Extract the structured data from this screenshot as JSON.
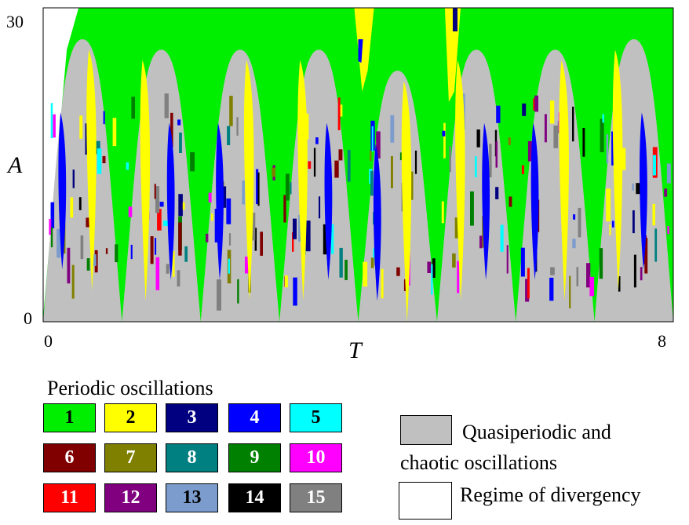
{
  "chart_data": {
    "type": "heatmap",
    "title": "",
    "xlabel": "T",
    "ylabel": "A",
    "xlim": [
      0,
      8
    ],
    "ylim": [
      0,
      30
    ],
    "x_ticks": [
      "0",
      "8"
    ],
    "y_ticks": [
      "0",
      "30"
    ],
    "regions_note_categories": [
      "1",
      "2",
      "3",
      "4",
      "5",
      "6",
      "7",
      "8",
      "9",
      "10",
      "11",
      "12",
      "13",
      "14",
      "15",
      "Quasiperiodic and chaotic oscillations",
      "Regime of divergency"
    ],
    "tongue_minima_T": [
      0,
      1,
      2,
      3,
      4,
      5,
      6,
      7,
      8
    ],
    "tongue_peaks": [
      {
        "T": 0.5,
        "A": 27,
        "region": "Quasiperiodic and chaotic oscillations"
      },
      {
        "T": 1.5,
        "A": 26,
        "region": "Quasiperiodic and chaotic oscillations"
      },
      {
        "T": 2.5,
        "A": 26,
        "region": "Quasiperiodic and chaotic oscillations"
      },
      {
        "T": 3.5,
        "A": 26,
        "region": "Quasiperiodic and chaotic oscillations"
      },
      {
        "T": 4.5,
        "A": 24,
        "region": "Quasiperiodic and chaotic oscillations"
      },
      {
        "T": 5.5,
        "A": 26,
        "region": "Quasiperiodic and chaotic oscillations"
      },
      {
        "T": 6.5,
        "A": 26,
        "region": "Quasiperiodic and chaotic oscillations"
      },
      {
        "T": 7.5,
        "A": 27,
        "region": "Quasiperiodic and chaotic oscillations"
      }
    ],
    "background_region": "1",
    "divergence_region": {
      "T": [
        0,
        0.45
      ],
      "A": [
        0,
        30
      ]
    }
  },
  "legend": {
    "title": "Periodic oscillations",
    "items": [
      {
        "label": "1",
        "color": "#00ee00",
        "text_color": "#000000"
      },
      {
        "label": "2",
        "color": "#ffff00",
        "text_color": "#000000"
      },
      {
        "label": "3",
        "color": "#000080",
        "text_color": "#ffffff"
      },
      {
        "label": "4",
        "color": "#0000ff",
        "text_color": "#ffffff"
      },
      {
        "label": "5",
        "color": "#00ffff",
        "text_color": "#000000"
      },
      {
        "label": "6",
        "color": "#800000",
        "text_color": "#ffffff"
      },
      {
        "label": "7",
        "color": "#808000",
        "text_color": "#ffffff"
      },
      {
        "label": "8",
        "color": "#008080",
        "text_color": "#ffffff"
      },
      {
        "label": "9",
        "color": "#008000",
        "text_color": "#ffffff"
      },
      {
        "label": "10",
        "color": "#ff00ff",
        "text_color": "#ffffff"
      },
      {
        "label": "11",
        "color": "#ff0000",
        "text_color": "#ffffff"
      },
      {
        "label": "12",
        "color": "#800080",
        "text_color": "#ffffff"
      },
      {
        "label": "13",
        "color": "#7b9ccc",
        "text_color": "#000000"
      },
      {
        "label": "14",
        "color": "#000000",
        "text_color": "#ffffff"
      },
      {
        "label": "15",
        "color": "#808080",
        "text_color": "#ffffff"
      }
    ],
    "quasi_line1": "Quasiperiodic and",
    "quasi_line2": "chaotic oscillations",
    "quasi_color": "#c0c0c0",
    "divergency": "Regime of divergency",
    "divergency_color": "#ffffff"
  }
}
